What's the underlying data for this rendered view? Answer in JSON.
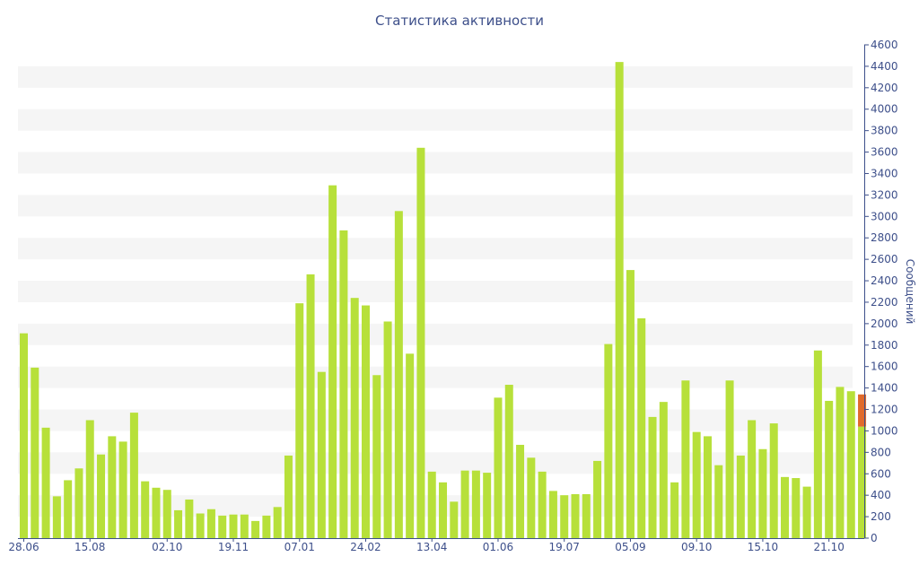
{
  "chart_data": {
    "type": "bar",
    "title": "Статистика активности",
    "xlabel": "",
    "ylabel": "Сообщений",
    "ylim": [
      0,
      4600
    ],
    "yticks": [
      0,
      200,
      400,
      600,
      800,
      1000,
      1200,
      1400,
      1600,
      1800,
      2000,
      2200,
      2400,
      2600,
      2800,
      3000,
      3200,
      3400,
      3600,
      3800,
      4000,
      4200,
      4400,
      4600
    ],
    "x_tick_labels": [
      {
        "index": 0,
        "label": "28.06"
      },
      {
        "index": 6,
        "label": "15.08"
      },
      {
        "index": 13,
        "label": "02.10"
      },
      {
        "index": 19,
        "label": "19.11"
      },
      {
        "index": 25,
        "label": "07.01"
      },
      {
        "index": 31,
        "label": "24.02"
      },
      {
        "index": 37,
        "label": "13.04"
      },
      {
        "index": 43,
        "label": "01.06"
      },
      {
        "index": 49,
        "label": "19.07"
      },
      {
        "index": 55,
        "label": "05.09"
      },
      {
        "index": 61,
        "label": "09.10"
      },
      {
        "index": 67,
        "label": "15.10"
      },
      {
        "index": 73,
        "label": "21.10"
      }
    ],
    "values": [
      1910,
      1590,
      1030,
      390,
      540,
      650,
      1100,
      780,
      950,
      900,
      1170,
      530,
      470,
      450,
      260,
      360,
      230,
      270,
      210,
      220,
      220,
      160,
      210,
      290,
      770,
      2190,
      2460,
      1550,
      3290,
      2870,
      2240,
      2170,
      1520,
      2020,
      3050,
      1720,
      3640,
      620,
      520,
      340,
      630,
      630,
      610,
      1310,
      1430,
      870,
      750,
      620,
      440,
      400,
      410,
      410,
      720,
      1810,
      4440,
      2500,
      2050,
      1130,
      1270,
      520,
      1470,
      990,
      950,
      680,
      1470,
      770,
      1100,
      830,
      1070,
      570,
      560,
      480,
      1750,
      1280,
      1410,
      1370,
      1040
    ],
    "highlight": {
      "index": 76,
      "base": 1040,
      "value": 1340,
      "color": "#e06a2c"
    },
    "bar_color": "#b7e03a",
    "stripe_color": "#f5f5f5",
    "axis_color": "#3d4f8a",
    "grid": false,
    "legend": "none"
  }
}
